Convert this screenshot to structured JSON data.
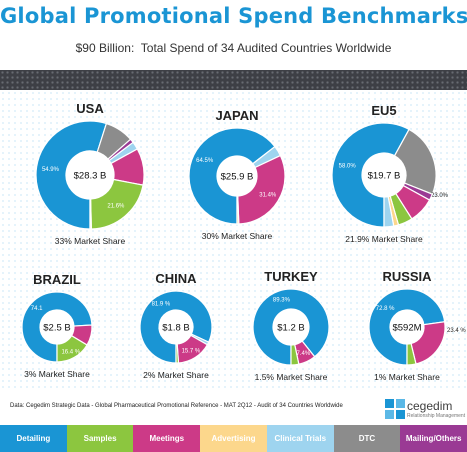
{
  "header": {
    "title": "Global Promotional Spend Benchmarks",
    "subtitle": "$90 Billion:  Total Spend of 34 Audited Countries Worldwide"
  },
  "colors": {
    "Detailing": "#1a95d4",
    "Samples": "#8cc63f",
    "Meetings": "#cc3a87",
    "Advertising": "#fcd78c",
    "Clinical Trials": "#9ed4ef",
    "DTC": "#8c8c8c",
    "Mailing/Others": "#9a3a94"
  },
  "chart_data": [
    {
      "type": "pie",
      "country": "USA",
      "total": "$28.3 B",
      "share": "33% Market Share",
      "slices": [
        {
          "category": "Detailing",
          "value": 54.9,
          "label": "54.9%"
        },
        {
          "category": "DTC",
          "value": 8.6
        },
        {
          "category": "Mailing/Others",
          "value": 1.2
        },
        {
          "category": "Clinical Trials",
          "value": 2.3
        },
        {
          "category": "Meetings",
          "value": 11.0
        },
        {
          "category": "Samples",
          "value": 21.6,
          "label": "21.6%"
        },
        {
          "category": "Advertising",
          "value": 0.4
        }
      ]
    },
    {
      "type": "pie",
      "country": "JAPAN",
      "total": "$25.9 B",
      "share": "30% Market Share",
      "slices": [
        {
          "category": "Detailing",
          "value": 64.5,
          "label": "64.5%"
        },
        {
          "category": "Clinical Trials",
          "value": 3.5
        },
        {
          "category": "Meetings",
          "value": 31.4,
          "label": "31.4%"
        },
        {
          "category": "Advertising",
          "value": 0.6
        }
      ]
    },
    {
      "type": "pie",
      "country": "EU5",
      "total": "$19.7 B",
      "share": "21.9% Market Share",
      "slices": [
        {
          "category": "Detailing",
          "value": 58.0,
          "label": "58.0%"
        },
        {
          "category": "DTC",
          "value": 23.0,
          "label": "23.0%"
        },
        {
          "category": "Mailing/Others",
          "value": 2.0
        },
        {
          "category": "Meetings",
          "value": 8.0
        },
        {
          "category": "Samples",
          "value": 4.5
        },
        {
          "category": "Advertising",
          "value": 1.5
        },
        {
          "category": "Clinical Trials",
          "value": 3.0
        }
      ]
    },
    {
      "type": "pie",
      "country": "BRAZIL",
      "total": "$2.5 B",
      "share": "3% Market Share",
      "slices": [
        {
          "category": "Detailing",
          "value": 74.1,
          "label": "74.1"
        },
        {
          "category": "Meetings",
          "value": 9.5
        },
        {
          "category": "Samples",
          "value": 16.4,
          "label": "16.4 %"
        }
      ]
    },
    {
      "type": "pie",
      "country": "CHINA",
      "total": "$1.8 B",
      "share": "2% Market Share",
      "slices": [
        {
          "category": "Detailing",
          "value": 81.9,
          "label": "81.9 %"
        },
        {
          "category": "Clinical Trials",
          "value": 1.3
        },
        {
          "category": "Meetings",
          "value": 15.7,
          "label": "15.7 %"
        },
        {
          "category": "Samples",
          "value": 1.1
        }
      ]
    },
    {
      "type": "pie",
      "country": "TURKEY",
      "total": "$1.2 B",
      "share": "1.5% Market Share",
      "slices": [
        {
          "category": "Detailing",
          "value": 89.3,
          "label": "89.3%"
        },
        {
          "category": "Meetings",
          "value": 7.4,
          "label": "7.4%"
        },
        {
          "category": "Samples",
          "value": 3.3
        }
      ]
    },
    {
      "type": "pie",
      "country": "RUSSIA",
      "total": "$592M",
      "share": "1% Market Share",
      "slices": [
        {
          "category": "Detailing",
          "value": 72.8,
          "label": "72.8 %"
        },
        {
          "category": "Meetings",
          "value": 23.4,
          "label": "23.4 %"
        },
        {
          "category": "Samples",
          "value": 3.8
        }
      ]
    }
  ],
  "footer": {
    "source": "Data: Cegedim Strategic Data - Global Pharmaceutical Promotional Reference - MAT 2Q12 - Audit of 34 Countries Worldwide",
    "logo_name": "cegedim",
    "logo_sub": "Relationship Management"
  },
  "legend": [
    "Detailing",
    "Samples",
    "Meetings",
    "Advertising",
    "Clinical Trials",
    "DTC",
    "Mailing/Others"
  ]
}
